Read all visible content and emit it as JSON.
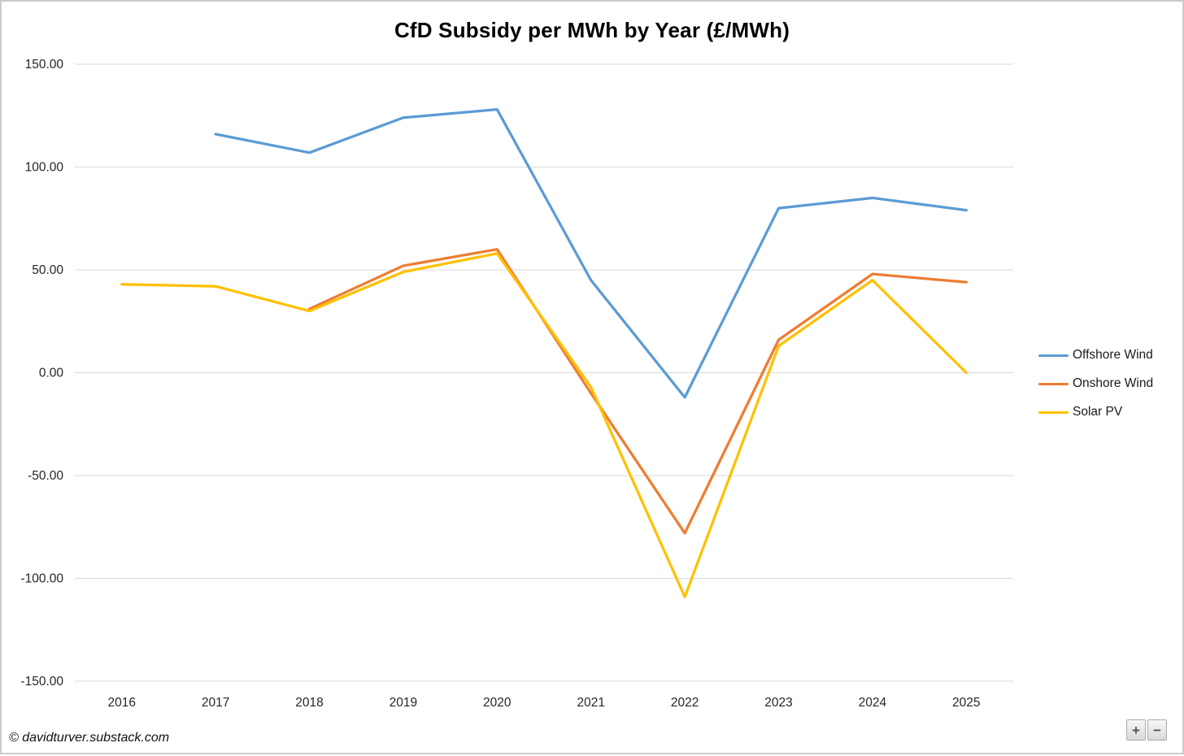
{
  "page": {
    "watermark": "© davidturver.substack.com",
    "zoom_in_label": "+",
    "zoom_out_label": "−"
  },
  "chart_data": {
    "type": "line",
    "title": "CfD Subsidy per MWh by Year (£/MWh)",
    "categories": [
      "2016",
      "2017",
      "2018",
      "2019",
      "2020",
      "2021",
      "2022",
      "2023",
      "2024",
      "2025"
    ],
    "series": [
      {
        "name": "Offshore Wind",
        "color": "#5B9BD5",
        "values": [
          null,
          116,
          107,
          124,
          128,
          45,
          -12,
          80,
          85,
          79
        ]
      },
      {
        "name": "Onshore Wind",
        "color": "#ED7D31",
        "values": [
          null,
          null,
          31,
          52,
          60,
          -10,
          -78,
          16,
          48,
          44
        ]
      },
      {
        "name": "Solar PV",
        "color": "#FFC000",
        "values": [
          43,
          42,
          30,
          49,
          58,
          -7,
          -109,
          13,
          45,
          0
        ]
      }
    ],
    "y_tick_labels": [
      "150.00",
      "100.00",
      "50.00",
      "0.00",
      "-50.00",
      "-100.00",
      "-150.00"
    ],
    "ylim": [
      -150,
      150
    ],
    "grid": true,
    "legend_position": "right",
    "gridline_color": "#D9D9D9",
    "axis_label_color": "#262626"
  }
}
